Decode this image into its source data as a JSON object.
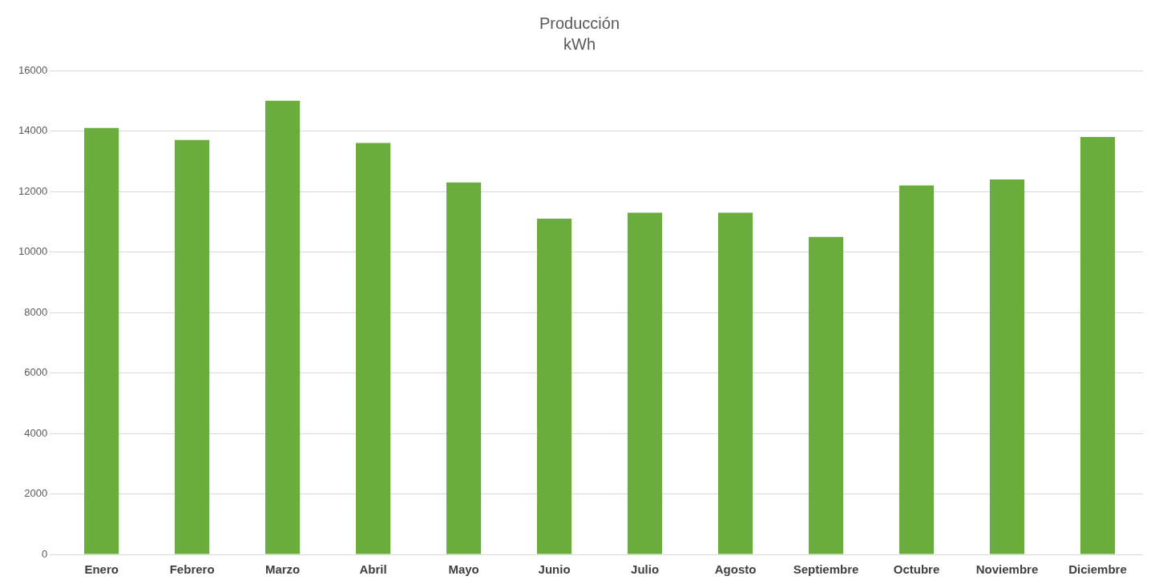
{
  "chart_data": {
    "type": "bar",
    "title": "Producción",
    "subtitle": "kWh",
    "categories": [
      "Enero",
      "Febrero",
      "Marzo",
      "Abril",
      "Mayo",
      "Junio",
      "Julio",
      "Agosto",
      "Septiembre",
      "Octubre",
      "Noviembre",
      "Diciembre"
    ],
    "values": [
      14100,
      13700,
      15000,
      13600,
      12300,
      11100,
      11300,
      11300,
      10500,
      12200,
      12400,
      13800
    ],
    "color": "#6aad3d",
    "ylim": [
      0,
      16000
    ],
    "yticks": [
      0,
      2000,
      4000,
      6000,
      8000,
      10000,
      12000,
      14000,
      16000
    ],
    "grid": "y",
    "legend": false
  }
}
